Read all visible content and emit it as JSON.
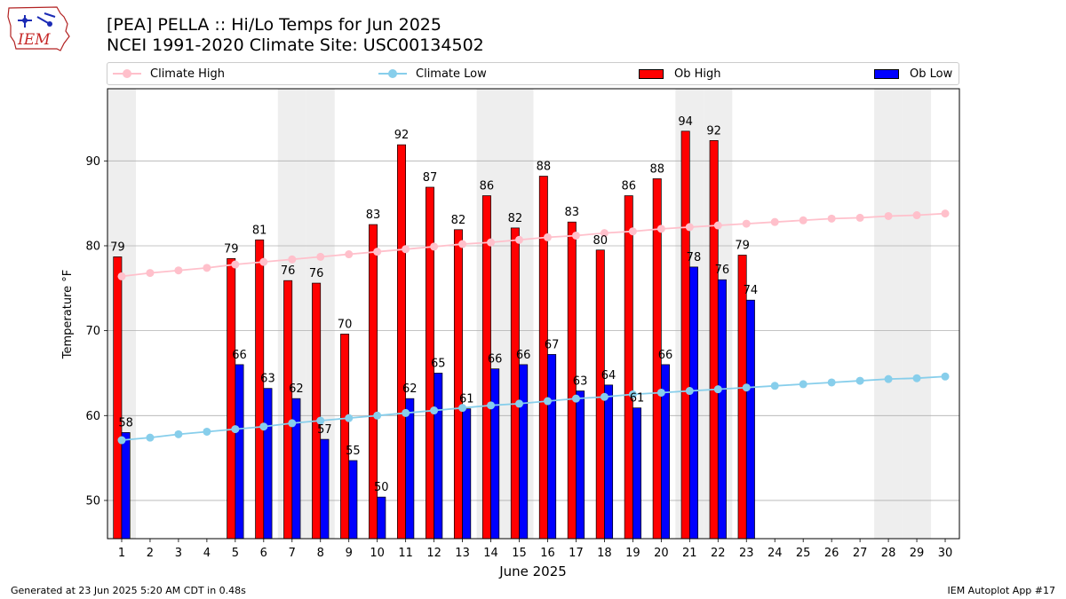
{
  "logo_text": "IEM",
  "header": {
    "title_line1": "[PEA] PELLA :: Hi/Lo Temps for Jun 2025",
    "title_line2": "NCEI 1991-2020 Climate Site: USC00134502"
  },
  "legend": {
    "items": [
      {
        "label": "Climate High",
        "kind": "line",
        "color": "#ffc0cb"
      },
      {
        "label": "Climate Low",
        "kind": "line",
        "color": "#87ceeb"
      },
      {
        "label": "Ob High",
        "kind": "bar",
        "color": "#ff0000"
      },
      {
        "label": "Ob Low",
        "kind": "bar",
        "color": "#0000ff"
      }
    ]
  },
  "footer": {
    "left": "Generated at 23 Jun 2025 5:20 AM CDT in 0.48s",
    "right": "IEM Autoplot App #17"
  },
  "chart_data": {
    "type": "bar",
    "title": "[PEA] PELLA :: Hi/Lo Temps for Jun 2025",
    "subtitle": "NCEI 1991-2020 Climate Site: USC00134502",
    "xlabel": "June 2025",
    "ylabel": "Temperature °F",
    "xlim": [
      0.5,
      30.5
    ],
    "ylim": [
      45.5,
      98.5
    ],
    "y_ticks": [
      50,
      60,
      70,
      80,
      90
    ],
    "grid": "y",
    "legend_position": "top",
    "weekend_days": [
      1,
      7,
      8,
      14,
      15,
      21,
      22,
      28,
      29
    ],
    "days": [
      1,
      2,
      3,
      4,
      5,
      6,
      7,
      8,
      9,
      10,
      11,
      12,
      13,
      14,
      15,
      16,
      17,
      18,
      19,
      20,
      21,
      22,
      23,
      24,
      25,
      26,
      27,
      28,
      29,
      30
    ],
    "series": [
      {
        "name": "Ob High",
        "kind": "bar",
        "color": "#ff0000",
        "values": [
          78.7,
          null,
          null,
          null,
          78.5,
          80.7,
          75.9,
          75.6,
          69.6,
          82.5,
          91.9,
          86.9,
          81.9,
          85.9,
          82.1,
          88.2,
          82.8,
          79.5,
          85.9,
          87.9,
          93.5,
          92.4,
          78.9,
          null,
          null,
          null,
          null,
          null,
          null,
          null
        ],
        "labels": [
          "79",
          "",
          "",
          "",
          "79",
          "81",
          "76",
          "76",
          "70",
          "83",
          "92",
          "87",
          "82",
          "86",
          "82",
          "88",
          "83",
          "80",
          "86",
          "88",
          "94",
          "92",
          "79",
          "",
          "",
          "",
          "",
          "",
          "",
          ""
        ]
      },
      {
        "name": "Ob Low",
        "kind": "bar",
        "color": "#0000ff",
        "values": [
          58,
          null,
          null,
          null,
          66,
          63.2,
          62,
          57.2,
          54.7,
          50.4,
          62,
          65,
          60.8,
          65.5,
          66,
          67.2,
          62.9,
          63.6,
          60.9,
          66,
          77.5,
          76,
          73.6,
          null,
          null,
          null,
          null,
          null,
          null,
          null
        ],
        "labels": [
          "58",
          "",
          "",
          "",
          "66",
          "63",
          "62",
          "57",
          "55",
          "50",
          "62",
          "65",
          "61",
          "66",
          "66",
          "67",
          "63",
          "64",
          "61",
          "66",
          "78",
          "76",
          "74",
          "",
          "",
          "",
          "",
          "",
          "",
          ""
        ]
      },
      {
        "name": "Climate High",
        "kind": "line",
        "color": "#ffc0cb",
        "values": [
          76.4,
          76.8,
          77.1,
          77.4,
          77.8,
          78.1,
          78.4,
          78.7,
          79.0,
          79.3,
          79.6,
          79.9,
          80.2,
          80.4,
          80.7,
          81.0,
          81.2,
          81.5,
          81.7,
          82.0,
          82.2,
          82.4,
          82.6,
          82.8,
          83.0,
          83.2,
          83.3,
          83.5,
          83.6,
          83.8
        ]
      },
      {
        "name": "Climate Low",
        "kind": "line",
        "color": "#87ceeb",
        "values": [
          57.1,
          57.4,
          57.8,
          58.1,
          58.4,
          58.7,
          59.1,
          59.4,
          59.7,
          60.0,
          60.3,
          60.6,
          60.9,
          61.2,
          61.4,
          61.7,
          62.0,
          62.2,
          62.5,
          62.7,
          62.9,
          63.1,
          63.3,
          63.5,
          63.7,
          63.9,
          64.1,
          64.3,
          64.4,
          64.6
        ]
      }
    ]
  }
}
